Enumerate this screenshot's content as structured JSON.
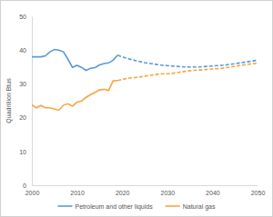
{
  "chart_data": {
    "type": "line",
    "y_label": "Quadrillion Btus",
    "x": [
      2000,
      2001,
      2002,
      2003,
      2004,
      2005,
      2006,
      2007,
      2008,
      2009,
      2010,
      2011,
      2012,
      2013,
      2014,
      2015,
      2016,
      2017,
      2018,
      2019,
      2020,
      2021,
      2022,
      2023,
      2024,
      2025,
      2026,
      2027,
      2028,
      2029,
      2030,
      2031,
      2032,
      2033,
      2034,
      2035,
      2036,
      2037,
      2038,
      2039,
      2040,
      2041,
      2042,
      2043,
      2044,
      2045,
      2046,
      2047,
      2048,
      2049,
      2050
    ],
    "series": [
      {
        "name": "Petroleum and other liquids",
        "color": "#5b9bd5",
        "line_style": "solid",
        "values": [
          38.0,
          38.0,
          38.0,
          38.3,
          39.5,
          40.2,
          40.0,
          39.5,
          37.3,
          34.9,
          35.5,
          34.9,
          34.0,
          34.6,
          34.8,
          35.6,
          36.0,
          36.2,
          37.0,
          38.5,
          null,
          null,
          null,
          null,
          null,
          null,
          null,
          null,
          null,
          null,
          null,
          null,
          null,
          null,
          null,
          null,
          null,
          null,
          null,
          null,
          null,
          null,
          null,
          null,
          null,
          null,
          null,
          null,
          null,
          null,
          null
        ]
      },
      {
        "name": "Natural gas",
        "color": "#f7a541",
        "line_style": "solid",
        "values": [
          23.8,
          22.9,
          23.6,
          22.9,
          22.9,
          22.6,
          22.2,
          23.7,
          24.1,
          23.4,
          24.6,
          24.9,
          26.0,
          26.8,
          27.5,
          28.2,
          28.4,
          28.0,
          30.9,
          31.0,
          null,
          null,
          null,
          null,
          null,
          null,
          null,
          null,
          null,
          null,
          null,
          null,
          null,
          null,
          null,
          null,
          null,
          null,
          null,
          null,
          null,
          null,
          null,
          null,
          null,
          null,
          null,
          null,
          null,
          null,
          null
        ]
      },
      {
        "color": "#5b9bd5",
        "line_style": "dashed",
        "values": [
          null,
          null,
          null,
          null,
          null,
          null,
          null,
          null,
          null,
          null,
          null,
          null,
          null,
          null,
          null,
          null,
          null,
          null,
          null,
          38.5,
          38.0,
          37.6,
          37.2,
          36.9,
          36.6,
          36.3,
          36.1,
          35.9,
          35.7,
          35.5,
          35.4,
          35.3,
          35.2,
          35.1,
          35.0,
          35.0,
          35.0,
          35.0,
          35.1,
          35.2,
          35.3,
          35.4,
          35.5,
          35.6,
          35.8,
          36.0,
          36.2,
          36.4,
          36.6,
          36.8,
          37.0
        ]
      },
      {
        "color": "#f7a541",
        "line_style": "dashed",
        "values": [
          null,
          null,
          null,
          null,
          null,
          null,
          null,
          null,
          null,
          null,
          null,
          null,
          null,
          null,
          null,
          null,
          null,
          null,
          null,
          31.0,
          31.3,
          31.6,
          31.8,
          31.9,
          32.1,
          32.3,
          32.5,
          32.7,
          32.9,
          33.0,
          33.0,
          33.1,
          33.3,
          33.5,
          33.7,
          33.9,
          34.0,
          34.1,
          34.2,
          34.3,
          34.4,
          34.5,
          34.6,
          34.8,
          35.0,
          35.2,
          35.4,
          35.6,
          35.8,
          36.0,
          36.1
        ]
      }
    ],
    "xlim": [
      2000,
      2050
    ],
    "xticks": [
      2000,
      2010,
      2020,
      2030,
      2040,
      2050
    ],
    "ylim": [
      0,
      50
    ],
    "yticks": [
      0,
      10,
      20,
      30,
      40,
      50
    ],
    "grid": false,
    "legend": "bottom"
  }
}
